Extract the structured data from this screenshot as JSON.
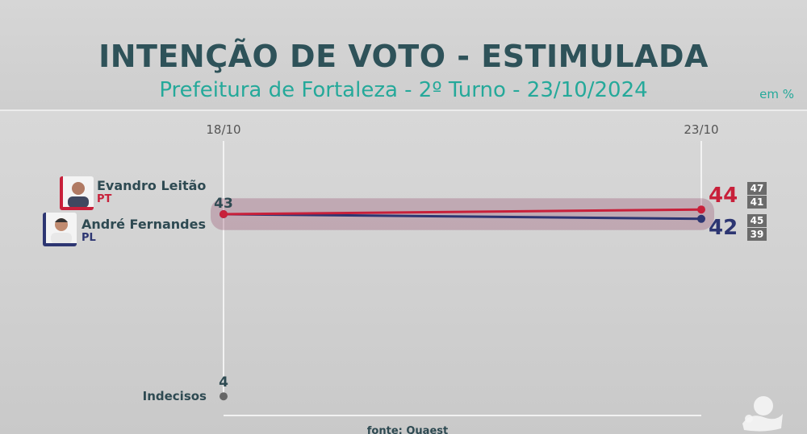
{
  "header": {
    "title": "INTENÇÃO DE VOTO - ESTIMULADA",
    "subtitle": "Prefeitura de Fortaleza - 2º Turno - 23/10/2024",
    "unit": "em %"
  },
  "source": "fonte: Quaest",
  "colors": {
    "evandro": "#c8203a",
    "andre": "#2d3672",
    "band": "#8c3a5c",
    "title": "#2e5259",
    "accent": "#25a99a"
  },
  "chart_data": {
    "type": "line",
    "x": [
      "18/10",
      "23/10"
    ],
    "series": [
      {
        "name": "Evandro Leitão",
        "party": "PT",
        "values": [
          43,
          44
        ],
        "ci": [
          47,
          41
        ]
      },
      {
        "name": "André Fernandes",
        "party": "PL",
        "values": [
          43,
          42
        ],
        "ci": [
          45,
          39
        ]
      },
      {
        "name": "Indecisos",
        "values": [
          4,
          null
        ]
      }
    ],
    "start_label": "43",
    "indecisos_label": "4"
  }
}
